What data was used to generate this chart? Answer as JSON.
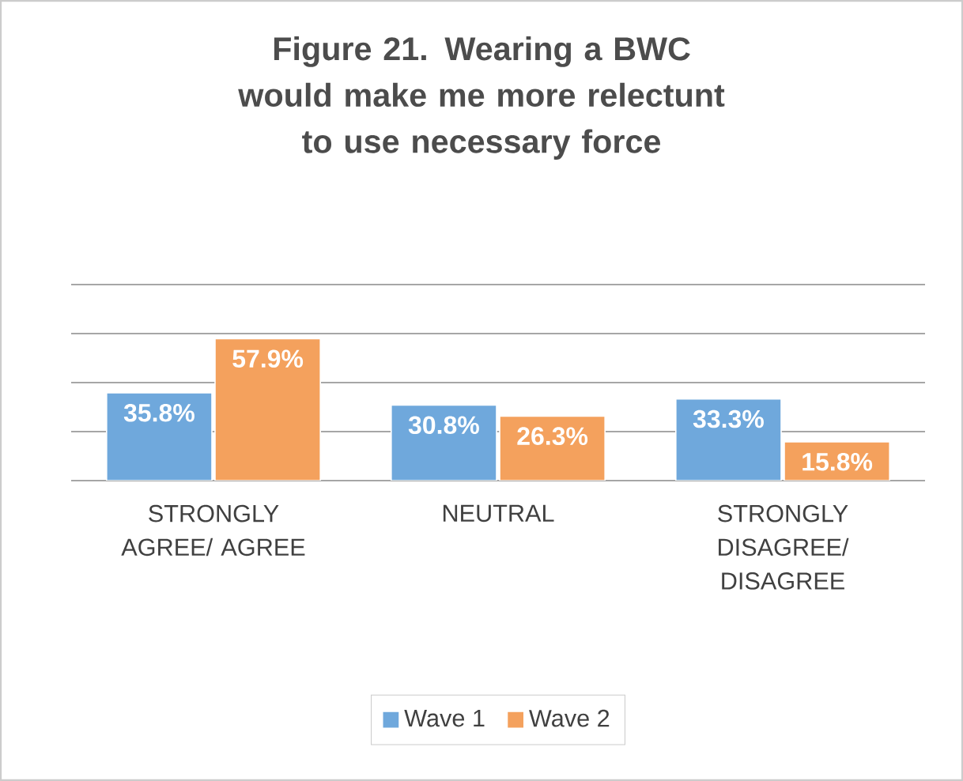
{
  "chart_data": {
    "type": "bar",
    "title": "Figure 21. Wearing a BWC would make me more relectunt to use necessary force",
    "categories": [
      "STRONGLY AGREE/ AGREE",
      "NEUTRAL",
      "STRONGLY DISAGREE/ DISAGREE"
    ],
    "series": [
      {
        "name": "Wave 1",
        "color": "#6fa8dc",
        "values": [
          35.8,
          30.8,
          33.3
        ],
        "value_labels": [
          "35.8%",
          "30.8%",
          "33.3%"
        ]
      },
      {
        "name": "Wave 2",
        "color": "#f4a15d",
        "values": [
          57.9,
          26.3,
          15.8
        ],
        "value_labels": [
          "57.9%",
          "26.3%",
          "15.8%"
        ]
      }
    ],
    "ylim": [
      0,
      80
    ],
    "yticks": [
      {
        "value": 0,
        "label": null
      },
      {
        "value": 20,
        "label": null
      },
      {
        "value": 40,
        "label": null
      },
      {
        "value": 60,
        "label": null
      },
      {
        "value": 80,
        "label": null
      }
    ],
    "grid": "y",
    "legend": "bottom",
    "tick_labels": "x"
  }
}
